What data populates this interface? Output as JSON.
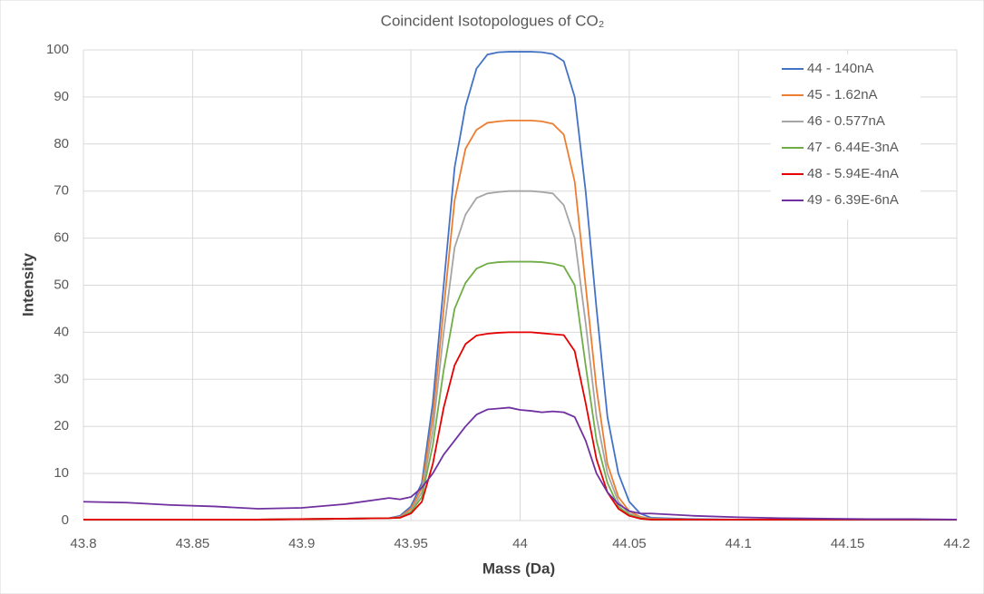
{
  "chart_data": {
    "type": "line",
    "title": "Coincident Isotopologues of CO₂",
    "x_label": "Mass (Da)",
    "y_label": "Intensity",
    "x": [
      43.8,
      43.82,
      43.84,
      43.86,
      43.88,
      43.9,
      43.92,
      43.94,
      43.945,
      43.95,
      43.955,
      43.96,
      43.965,
      43.97,
      43.975,
      43.98,
      43.985,
      43.99,
      43.995,
      44,
      44.005,
      44.01,
      44.015,
      44.02,
      44.025,
      44.03,
      44.035,
      44.04,
      44.045,
      44.05,
      44.055,
      44.06,
      44.08,
      44.1,
      44.12,
      44.14,
      44.16,
      44.18,
      44.2
    ],
    "series": [
      {
        "name": "44 - 140nA",
        "color": "#4472c4",
        "values": [
          0.2,
          0.2,
          0.2,
          0.2,
          0.2,
          0.3,
          0.4,
          0.5,
          1,
          3,
          8,
          25,
          50,
          75,
          88,
          96,
          99,
          99.5,
          99.6,
          99.6,
          99.6,
          99.5,
          99.1,
          97.6,
          90,
          70,
          45,
          22,
          10,
          4,
          1.5,
          0.6,
          0.3,
          0.2,
          0.2,
          0.2,
          0.2,
          0.2,
          0.2
        ]
      },
      {
        "name": "45 - 1.62nA",
        "color": "#ed7d31",
        "values": [
          0.2,
          0.2,
          0.2,
          0.2,
          0.2,
          0.3,
          0.4,
          0.5,
          0.8,
          2.5,
          7,
          22,
          45,
          68,
          79,
          83,
          84.5,
          84.8,
          85,
          85,
          85,
          84.8,
          84.3,
          82,
          72,
          50,
          28,
          12,
          5,
          2,
          0.8,
          0.4,
          0.2,
          0.2,
          0.2,
          0.2,
          0.2,
          0.2,
          0.2
        ]
      },
      {
        "name": "46 - 0.577nA",
        "color": "#a5a5a5",
        "values": [
          0.2,
          0.2,
          0.2,
          0.2,
          0.2,
          0.3,
          0.4,
          0.5,
          0.7,
          2,
          6,
          19,
          40,
          58,
          65,
          68.5,
          69.5,
          69.8,
          70,
          70,
          70,
          69.8,
          69.5,
          67,
          60,
          42,
          22,
          10,
          4,
          1.5,
          0.6,
          0.3,
          0.2,
          0.2,
          0.2,
          0.2,
          0.2,
          0.2,
          0.2
        ]
      },
      {
        "name": "47 - 6.44E-3nA",
        "color": "#70ad47",
        "values": [
          0.2,
          0.2,
          0.2,
          0.2,
          0.2,
          0.3,
          0.4,
          0.5,
          0.6,
          1.8,
          5,
          16,
          32,
          45,
          50.5,
          53.5,
          54.6,
          54.9,
          55,
          55,
          55,
          54.9,
          54.6,
          54,
          50,
          33,
          17,
          8,
          3,
          1.2,
          0.5,
          0.2,
          0.2,
          0.2,
          0.2,
          0.2,
          0.2,
          0.2,
          0.2
        ]
      },
      {
        "name": "48 - 5.94E-4nA",
        "color": "#e60000",
        "values": [
          0.2,
          0.2,
          0.2,
          0.2,
          0.2,
          0.3,
          0.4,
          0.5,
          0.6,
          1.5,
          4,
          12,
          24,
          33,
          37.5,
          39.3,
          39.7,
          39.9,
          40,
          40,
          40,
          39.8,
          39.6,
          39.4,
          36,
          25,
          13,
          6,
          2.5,
          1,
          0.4,
          0.2,
          0.2,
          0.2,
          0.2,
          0.2,
          0.2,
          0.2,
          0.2
        ]
      },
      {
        "name": "49 - 6.39E-6nA",
        "color": "#7030a0",
        "values": [
          4,
          3.8,
          3.3,
          3,
          2.5,
          2.7,
          3.5,
          4.8,
          4.5,
          5,
          7,
          10,
          14,
          17,
          20,
          22.5,
          23.6,
          23.8,
          24,
          23.5,
          23.3,
          23,
          23.2,
          23,
          22,
          17,
          10,
          6,
          3.5,
          2,
          1.5,
          1.5,
          1,
          0.7,
          0.5,
          0.4,
          0.3,
          0.3,
          0.2
        ]
      }
    ],
    "xlim": [
      43.8,
      44.2
    ],
    "xticks": [
      43.8,
      43.85,
      43.9,
      43.95,
      44,
      44.05,
      44.1,
      44.15,
      44.2
    ],
    "ylim": [
      0,
      100
    ],
    "yticks": [
      0,
      10,
      20,
      30,
      40,
      50,
      60,
      70,
      80,
      90,
      100
    ],
    "grid": true,
    "legend": "top-right"
  }
}
